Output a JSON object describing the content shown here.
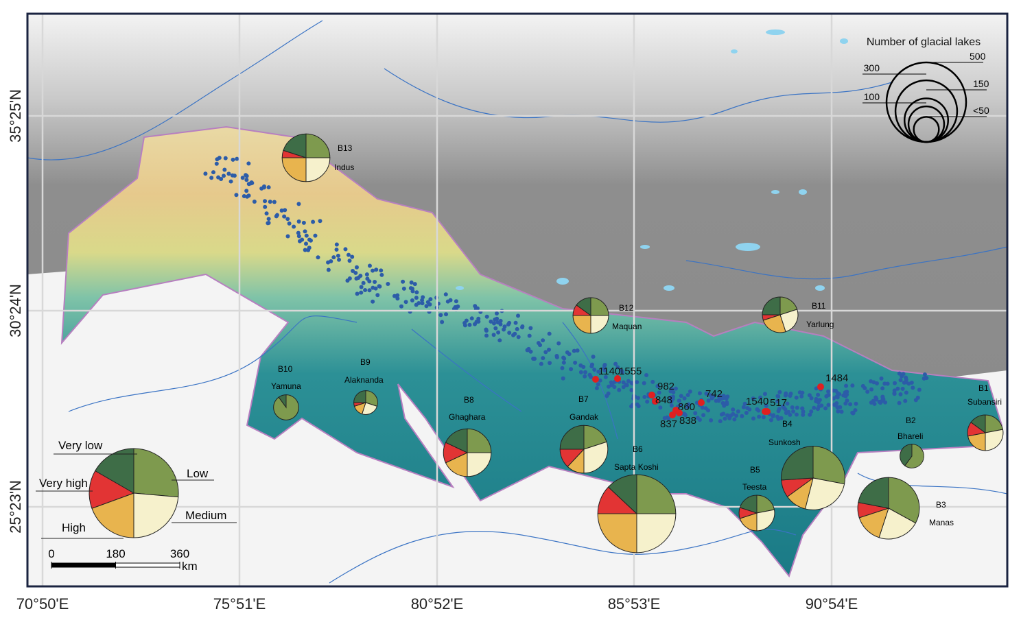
{
  "map": {
    "lon_labels": [
      "70°50'E",
      "75°51'E",
      "80°52'E",
      "85°53'E",
      "90°54'E"
    ],
    "lat_labels": [
      "35°25'N",
      "30°24'N",
      "25°23'N"
    ],
    "size_legend": {
      "title": "Number of glacial lakes",
      "circles": [
        {
          "value": 500,
          "label": "500"
        },
        {
          "value": 300,
          "label": "300"
        },
        {
          "value": 150,
          "label": "150"
        },
        {
          "value": 100,
          "label": "100"
        },
        {
          "value": 50,
          "label": "<50"
        }
      ]
    },
    "classes": [
      {
        "name": "Very low",
        "color": "#3e6d47"
      },
      {
        "name": "Low",
        "color": "#7e9a4e"
      },
      {
        "name": "Medium",
        "color": "#f6f1cc"
      },
      {
        "name": "High",
        "color": "#e8b44e"
      },
      {
        "name": "Very high",
        "color": "#e23434"
      }
    ],
    "basins": [
      {
        "code": "B1",
        "name": "Subansiri",
        "lakes": 100,
        "shares": [
          15,
          22,
          28,
          22,
          13
        ]
      },
      {
        "code": "B2",
        "name": "Bhareli",
        "lakes": 45,
        "shares": [
          40,
          60,
          0,
          0,
          0
        ]
      },
      {
        "code": "B3",
        "name": "Manas",
        "lakes": 300,
        "shares": [
          22,
          33,
          22,
          15,
          8
        ]
      },
      {
        "code": "B4",
        "name": "Sunkosh",
        "lakes": 320,
        "shares": [
          26,
          28,
          26,
          11,
          9
        ]
      },
      {
        "code": "B5",
        "name": "Teesta",
        "lakes": 100,
        "shares": [
          20,
          22,
          28,
          20,
          10
        ]
      },
      {
        "code": "B6",
        "name": "Sapta Koshi",
        "lakes": 480,
        "shares": [
          13,
          25,
          25,
          25,
          12
        ]
      },
      {
        "code": "B7",
        "name": "Gandak",
        "lakes": 180,
        "shares": [
          25,
          20,
          30,
          12,
          13
        ]
      },
      {
        "code": "B8",
        "name": "Ghaghara",
        "lakes": 180,
        "shares": [
          18,
          25,
          25,
          18,
          14
        ]
      },
      {
        "code": "B9",
        "name": "Alaknanda",
        "lakes": 45,
        "shares": [
          25,
          30,
          25,
          15,
          5
        ]
      },
      {
        "code": "B10",
        "name": "Yamuna",
        "lakes": 50,
        "shares": [
          10,
          90,
          0,
          0,
          0
        ]
      },
      {
        "code": "B11",
        "name": "Yarlung",
        "lakes": 100,
        "shares": [
          25,
          20,
          25,
          25,
          5
        ]
      },
      {
        "code": "B12",
        "name": "Maquan",
        "lakes": 100,
        "shares": [
          15,
          25,
          25,
          25,
          10
        ]
      },
      {
        "code": "B13",
        "name": "Indus",
        "lakes": 180,
        "shares": [
          20,
          25,
          25,
          25,
          5
        ]
      }
    ],
    "hazard_lakes": [
      1140,
      1555,
      982,
      848,
      860,
      837,
      838,
      742,
      1540,
      517,
      1484
    ],
    "scale_bar": {
      "ticks": [
        0,
        180,
        360
      ],
      "unit": "km"
    }
  }
}
